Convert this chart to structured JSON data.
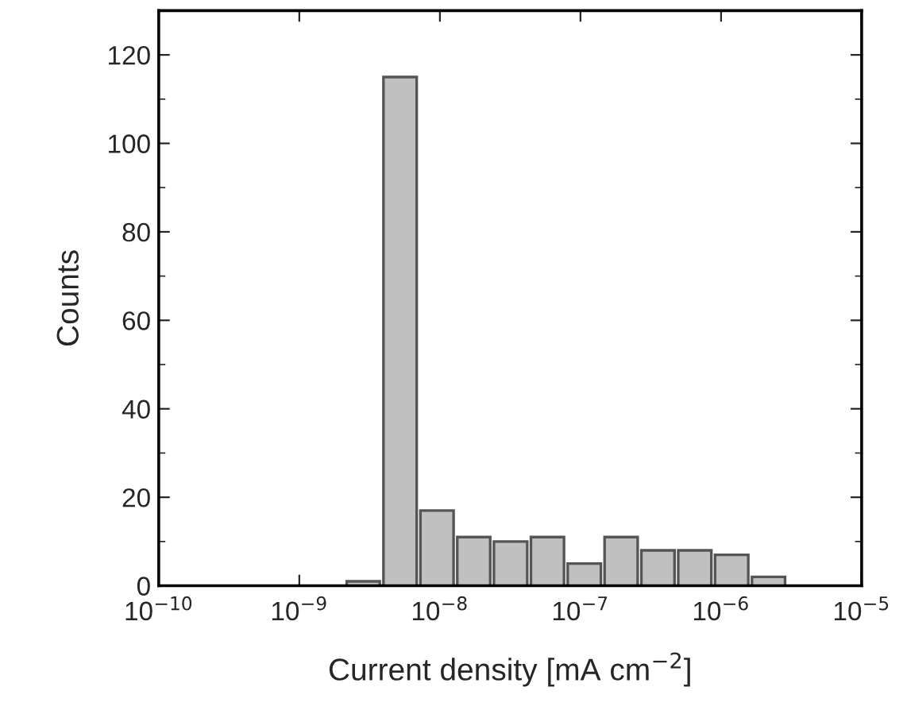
{
  "chart_data": {
    "type": "histogram",
    "xlabel": "Current density [mA cm$^{−2}$]",
    "ylabel": "Counts",
    "bins": [
      2.11e-09,
      3.85e-09,
      7.05e-09,
      1.29e-08,
      2.35e-08,
      4.31e-08,
      7.87e-08,
      1.44e-07,
      2.63e-07,
      4.81e-07,
      8.79e-07,
      1.61e-06,
      2.94e-06
    ],
    "values": [
      1,
      115,
      17,
      11,
      10,
      11,
      5,
      11,
      8,
      8,
      7,
      2
    ],
    "color": "#c0c0c0",
    "log": "x",
    "xlim": [
      1e-10,
      1e-05
    ],
    "xticks": [
      {
        "value": 1e-10,
        "label": "10$^{−10}$"
      },
      {
        "value": 1e-09,
        "label": "10$^{−9}$"
      },
      {
        "value": 1e-08,
        "label": "10$^{−8}$"
      },
      {
        "value": 1e-07,
        "label": "10$^{−7}$"
      },
      {
        "value": 1e-06,
        "label": "10$^{−6}$"
      },
      {
        "value": 1e-05,
        "label": "10$^{−5}$"
      }
    ],
    "ylim": [
      0,
      130
    ],
    "yticks": [
      0,
      20,
      40,
      60,
      80,
      100,
      120
    ],
    "grid": false,
    "legend": false
  }
}
